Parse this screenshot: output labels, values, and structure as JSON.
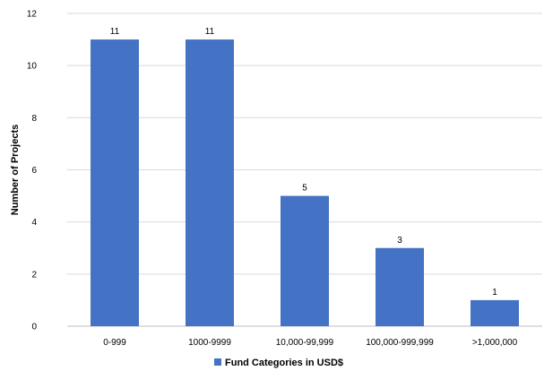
{
  "chart_data": {
    "type": "bar",
    "categories": [
      "0-999",
      "1000-9999",
      "10,000-99,999",
      "100,000-999,999",
      ">1,000,000"
    ],
    "series": [
      {
        "name": "Fund Categories in USD$",
        "values": [
          11,
          11,
          5,
          3,
          1
        ],
        "color": "#4472c4"
      }
    ],
    "title": "",
    "xlabel": "",
    "ylabel": "Number of Projects",
    "ylim": [
      0,
      12
    ],
    "yticks": [
      0,
      2,
      4,
      6,
      8,
      10,
      12
    ],
    "data_labels": [
      "11",
      "11",
      "5",
      "3",
      "1"
    ],
    "grid": true,
    "legend_position": "bottom"
  }
}
